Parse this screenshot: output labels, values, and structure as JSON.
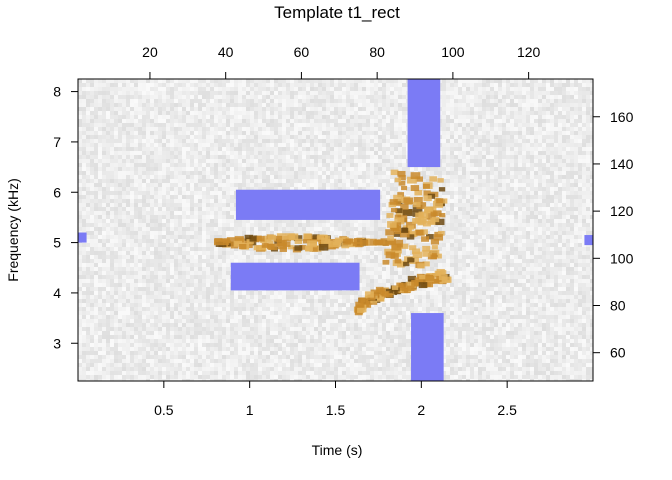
{
  "chart_data": {
    "type": "heatmap",
    "title": "Template t1_rect",
    "xlabel": "Time (s)",
    "ylabel": "Frequency (kHz)",
    "xlim": [
      0.0,
      3.0
    ],
    "ylim": [
      2.25,
      8.25
    ],
    "x_ticks": [
      0.5,
      1,
      1.5,
      2,
      2.5
    ],
    "x_tick_labels": [
      "0.5",
      "1",
      "1.5",
      "2",
      "2.5"
    ],
    "y_ticks": [
      3,
      4,
      5,
      6,
      7,
      8
    ],
    "y_tick_labels": [
      "3",
      "4",
      "5",
      "6",
      "7",
      "8"
    ],
    "top_axis": {
      "lim": [
        1,
        137
      ],
      "ticks": [
        20,
        40,
        60,
        80,
        100,
        120
      ],
      "tick_labels": [
        "20",
        "40",
        "60",
        "80",
        "100",
        "120"
      ]
    },
    "right_axis": {
      "lim": [
        48,
        176
      ],
      "ticks": [
        60,
        80,
        100,
        120,
        140,
        160
      ],
      "tick_labels": [
        "60",
        "80",
        "100",
        "120",
        "140",
        "160"
      ]
    },
    "colors": {
      "background": "#ececec",
      "signal_light": "#e3b15a",
      "signal_mid": "#c98a2c",
      "signal_dark": "#6e4a12",
      "template_rect": "#7b7bf5",
      "frame": "#000000"
    },
    "signal_calls": [
      {
        "t": [
          0.8,
          1.8
        ],
        "f": [
          4.75,
          5.2
        ]
      },
      {
        "t": [
          1.83,
          2.15
        ],
        "f": [
          4.5,
          6.4
        ]
      },
      {
        "t": [
          1.63,
          2.15
        ],
        "f": [
          3.55,
          4.45
        ]
      }
    ],
    "template_rects": [
      {
        "t": [
          0.0,
          0.05
        ],
        "f": [
          5.0,
          5.2
        ]
      },
      {
        "t": [
          1.92,
          2.11
        ],
        "f": [
          6.5,
          8.25
        ]
      },
      {
        "t": [
          0.92,
          1.76
        ],
        "f": [
          5.45,
          6.05
        ]
      },
      {
        "t": [
          0.89,
          1.64
        ],
        "f": [
          4.05,
          4.6
        ]
      },
      {
        "t": [
          1.94,
          2.13
        ],
        "f": [
          2.25,
          3.6
        ]
      },
      {
        "t": [
          2.95,
          3.0
        ],
        "f": [
          4.95,
          5.15
        ]
      }
    ]
  }
}
